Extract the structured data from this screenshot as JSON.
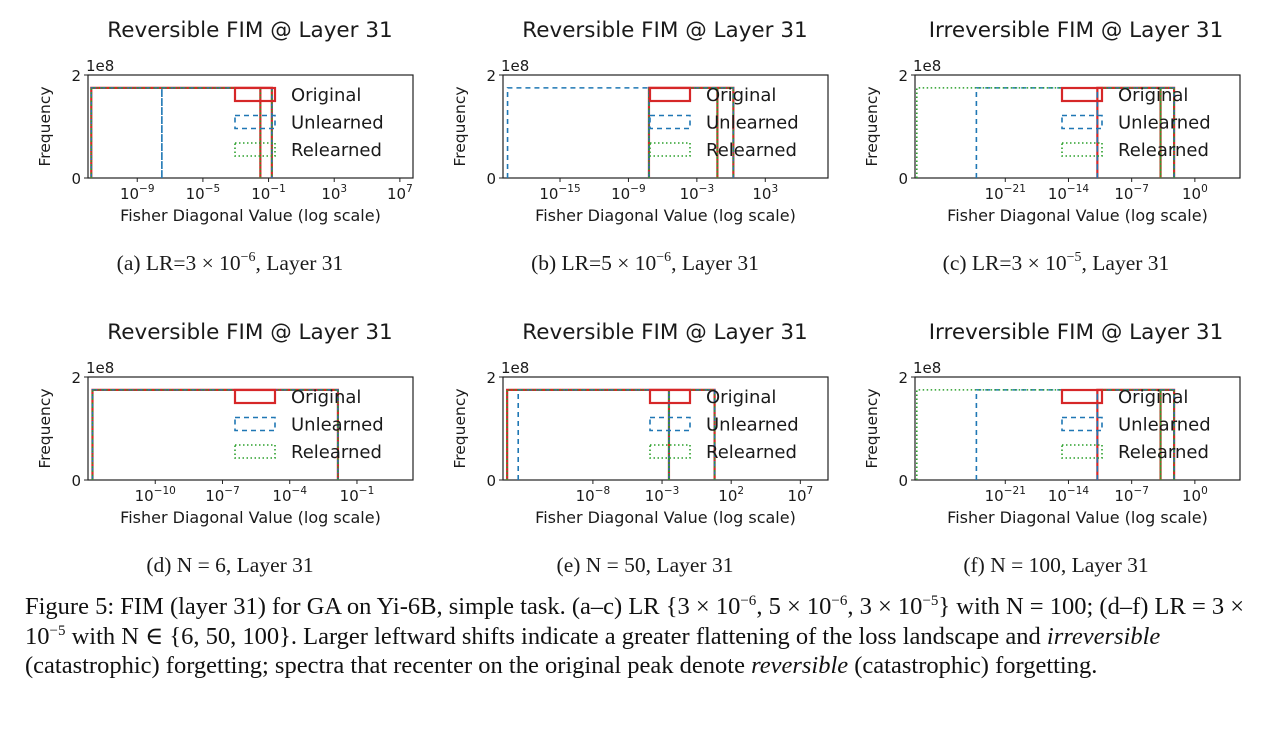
{
  "chart_data": [
    {
      "type": "histogram",
      "title": "Reversible FIM @ Layer 31",
      "xlabel": "Fisher Diagonal Value (log scale)",
      "ylabel": "Frequency",
      "y_multiplier_label": "1e8",
      "xscale": "log",
      "xlim_log10": [
        -12,
        7.8
      ],
      "ylim": [
        0,
        2
      ],
      "ytick_labels": [
        "0",
        "2"
      ],
      "xticks": [
        {
          "base": "10",
          "exp": "−9",
          "value": -9
        },
        {
          "base": "10",
          "exp": "−5",
          "value": -5
        },
        {
          "base": "10",
          "exp": "−1",
          "value": -1
        },
        {
          "base": "10",
          "exp": "3",
          "value": 3
        },
        {
          "base": "10",
          "exp": "7",
          "value": 7
        }
      ],
      "legend": [
        "Original",
        "Unlearned",
        "Relearned"
      ],
      "legend_position": "upper-right",
      "caption_label": "(a) LR=3 × 10",
      "caption_exp": "−6",
      "caption_tail": ", Layer 31",
      "series": [
        {
          "name": "Original",
          "bins_log10": [
            [
              -11.8,
              -1.5
            ],
            [
              -1.5,
              -0.8
            ]
          ],
          "counts": [
            1.75,
            1.75
          ]
        },
        {
          "name": "Unlearned",
          "bins_log10": [
            [
              -11.8,
              -7.5
            ],
            [
              -7.5,
              -0.8
            ]
          ],
          "counts": [
            1.75,
            1.75
          ]
        },
        {
          "name": "Relearned",
          "bins_log10": [
            [
              -11.8,
              -1.5
            ],
            [
              -1.5,
              -0.8
            ]
          ],
          "counts": [
            1.75,
            1.75
          ]
        }
      ]
    },
    {
      "type": "histogram",
      "title": "Reversible FIM @ Layer 31",
      "xlabel": "Fisher Diagonal Value (log scale)",
      "ylabel": "Frequency",
      "y_multiplier_label": "1e8",
      "xscale": "log",
      "xlim_log10": [
        -20,
        8.5
      ],
      "ylim": [
        0,
        2
      ],
      "ytick_labels": [
        "0",
        "2"
      ],
      "xticks": [
        {
          "base": "10",
          "exp": "−15",
          "value": -15
        },
        {
          "base": "10",
          "exp": "−9",
          "value": -9
        },
        {
          "base": "10",
          "exp": "−3",
          "value": -3
        },
        {
          "base": "10",
          "exp": "3",
          "value": 3
        }
      ],
      "legend": [
        "Original",
        "Unlearned",
        "Relearned"
      ],
      "legend_position": "upper-right",
      "caption_label": "(b) LR=5 × 10",
      "caption_exp": "−6",
      "caption_tail": ", Layer 31",
      "series": [
        {
          "name": "Original",
          "bins_log10": [
            [
              -7.2,
              -1.2
            ],
            [
              -1.2,
              0.2
            ]
          ],
          "counts": [
            1.75,
            1.75
          ]
        },
        {
          "name": "Unlearned",
          "bins_log10": [
            [
              -19.6,
              -7.2
            ],
            [
              -7.2,
              0.2
            ]
          ],
          "counts": [
            1.75,
            1.75
          ]
        },
        {
          "name": "Relearned",
          "bins_log10": [
            [
              -7.2,
              -1.2
            ],
            [
              -1.2,
              0.2
            ]
          ],
          "counts": [
            1.75,
            1.75
          ]
        }
      ]
    },
    {
      "type": "histogram",
      "title": "Irreversible FIM @ Layer 31",
      "xlabel": "Fisher Diagonal Value (log scale)",
      "ylabel": "Frequency",
      "y_multiplier_label": "1e8",
      "xscale": "log",
      "xlim_log10": [
        -31,
        5
      ],
      "ylim": [
        0,
        2
      ],
      "ytick_labels": [
        "0",
        "2"
      ],
      "xticks": [
        {
          "base": "10",
          "exp": "−21",
          "value": -21
        },
        {
          "base": "10",
          "exp": "−14",
          "value": -14
        },
        {
          "base": "10",
          "exp": "−7",
          "value": -7
        },
        {
          "base": "10",
          "exp": "0",
          "value": 0
        }
      ],
      "legend": [
        "Original",
        "Unlearned",
        "Relearned"
      ],
      "legend_position": "upper-right",
      "caption_label": "(c) LR=3 × 10",
      "caption_exp": "−5",
      "caption_tail": ", Layer 31",
      "series": [
        {
          "name": "Original",
          "bins_log10": [
            [
              -10.8,
              -3.8
            ],
            [
              -3.8,
              -2.3
            ]
          ],
          "counts": [
            1.75,
            1.75
          ]
        },
        {
          "name": "Unlearned",
          "bins_log10": [
            [
              -24.2,
              -10.8
            ],
            [
              -10.8,
              -2.3
            ]
          ],
          "counts": [
            1.75,
            1.75
          ]
        },
        {
          "name": "Relearned",
          "bins_log10": [
            [
              -30.8,
              -3.8
            ],
            [
              -3.8,
              -2.3
            ]
          ],
          "counts": [
            1.75,
            1.75
          ]
        }
      ]
    },
    {
      "type": "histogram",
      "title": "Reversible FIM @ Layer 31",
      "xlabel": "Fisher Diagonal Value (log scale)",
      "ylabel": "Frequency",
      "y_multiplier_label": "1e8",
      "xscale": "log",
      "xlim_log10": [
        -13,
        1.5
      ],
      "ylim": [
        0,
        2
      ],
      "ytick_labels": [
        "0",
        "2"
      ],
      "xticks": [
        {
          "base": "10",
          "exp": "−10",
          "value": -10
        },
        {
          "base": "10",
          "exp": "−7",
          "value": -7
        },
        {
          "base": "10",
          "exp": "−4",
          "value": -4
        },
        {
          "base": "10",
          "exp": "−1",
          "value": -1
        }
      ],
      "legend": [
        "Original",
        "Unlearned",
        "Relearned"
      ],
      "legend_position": "upper-right",
      "caption_label": "(d) N = 6, Layer 31",
      "series": [
        {
          "name": "Original",
          "bins_log10": [
            [
              -12.8,
              -1.85
            ]
          ],
          "counts": [
            1.75
          ]
        },
        {
          "name": "Unlearned",
          "bins_log10": [
            [
              -12.8,
              -1.85
            ]
          ],
          "counts": [
            1.75
          ]
        },
        {
          "name": "Relearned",
          "bins_log10": [
            [
              -12.8,
              -1.85
            ]
          ],
          "counts": [
            1.75
          ]
        }
      ]
    },
    {
      "type": "histogram",
      "title": "Reversible FIM @ Layer 31",
      "xlabel": "Fisher Diagonal Value (log scale)",
      "ylabel": "Frequency",
      "y_multiplier_label": "1e8",
      "xscale": "log",
      "xlim_log10": [
        -14.5,
        9
      ],
      "ylim": [
        0,
        2
      ],
      "ytick_labels": [
        "0",
        "2"
      ],
      "xticks": [
        {
          "base": "10",
          "exp": "−8",
          "value": -8
        },
        {
          "base": "10",
          "exp": "−3",
          "value": -3
        },
        {
          "base": "10",
          "exp": "2",
          "value": 2
        },
        {
          "base": "10",
          "exp": "7",
          "value": 7
        }
      ],
      "legend": [
        "Original",
        "Unlearned",
        "Relearned"
      ],
      "legend_position": "upper-right",
      "caption_label": "(e) N = 50, Layer 31",
      "series": [
        {
          "name": "Original",
          "bins_log10": [
            [
              -14.2,
              -2.5
            ],
            [
              -2.5,
              0.8
            ]
          ],
          "counts": [
            1.75,
            1.75
          ]
        },
        {
          "name": "Unlearned",
          "bins_log10": [
            [
              -13.4,
              -2.5
            ],
            [
              -2.5,
              0.8
            ]
          ],
          "counts": [
            1.75,
            1.75
          ]
        },
        {
          "name": "Relearned",
          "bins_log10": [
            [
              -14.2,
              -2.5
            ],
            [
              -2.5,
              0.8
            ]
          ],
          "counts": [
            1.75,
            1.75
          ]
        }
      ]
    },
    {
      "type": "histogram",
      "title": "Irreversible FIM @ Layer 31",
      "xlabel": "Fisher Diagonal Value (log scale)",
      "ylabel": "Frequency",
      "y_multiplier_label": "1e8",
      "xscale": "log",
      "xlim_log10": [
        -31,
        5
      ],
      "ylim": [
        0,
        2
      ],
      "ytick_labels": [
        "0",
        "2"
      ],
      "xticks": [
        {
          "base": "10",
          "exp": "−21",
          "value": -21
        },
        {
          "base": "10",
          "exp": "−14",
          "value": -14
        },
        {
          "base": "10",
          "exp": "−7",
          "value": -7
        },
        {
          "base": "10",
          "exp": "0",
          "value": 0
        }
      ],
      "legend": [
        "Original",
        "Unlearned",
        "Relearned"
      ],
      "legend_position": "upper-right",
      "caption_label": "(f) N = 100, Layer 31",
      "series": [
        {
          "name": "Original",
          "bins_log10": [
            [
              -10.8,
              -3.8
            ],
            [
              -3.8,
              -2.3
            ]
          ],
          "counts": [
            1.75,
            1.75
          ]
        },
        {
          "name": "Unlearned",
          "bins_log10": [
            [
              -24.2,
              -10.8
            ],
            [
              -10.8,
              -2.3
            ]
          ],
          "counts": [
            1.75,
            1.75
          ]
        },
        {
          "name": "Relearned",
          "bins_log10": [
            [
              -30.8,
              -3.8
            ],
            [
              -3.8,
              -2.3
            ]
          ],
          "counts": [
            1.75,
            1.75
          ]
        }
      ]
    }
  ],
  "colors": {
    "Original": "#d62728",
    "Unlearned": "#1f77b4",
    "Relearned": "#2ca02c"
  },
  "caption": {
    "lead": "Figure 5: FIM (layer 31) for GA on Yi-6B, simple task. (a–c) LR {3 × 10",
    "e1": "−6",
    "t1": ", 5 × 10",
    "e2": "−6",
    "t2": ", 3 × 10",
    "e3": "−5",
    "t3": "} with N = 100; (d–f) LR = 3 × 10",
    "e4": "−5",
    "t4": " with N ∈ {6, 50, 100}. Larger leftward shifts indicate a greater flattening of the loss landscape and ",
    "em1": "irreversible",
    "t5": " (catastrophic) forgetting; spectra that recenter on the original peak denote ",
    "em2": "reversible",
    "t6": " (catastrophic) forgetting."
  }
}
